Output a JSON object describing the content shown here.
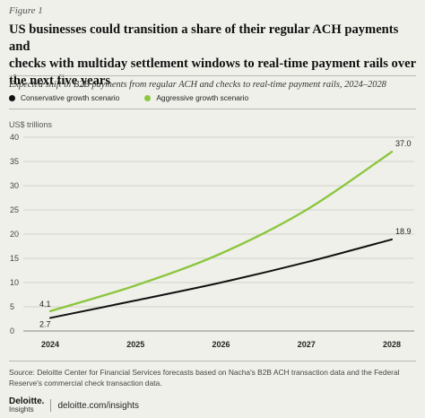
{
  "figure_label": "Figure 1",
  "title_lines": [
    "US businesses could transition a share of their regular ACH payments and",
    "checks with multiday settlement windows to real-time payment rails over",
    "the next five years"
  ],
  "subtitle": "Expected shift in B2B payments from regular ACH and checks to real-time payment rails, 2024–2028",
  "unit_label": "US$ trillions",
  "source_text": "Source: Deloitte Center for Financial Services forecasts based on Nacha's B2B ACH transaction data and the Federal Reserve's commercial check transaction data.",
  "footer": {
    "brand_name": "Deloitte.",
    "brand_sub": "Insights",
    "url": "deloitte.com/insights"
  },
  "colors": {
    "conservative": "#111111",
    "aggressive": "#8cc63f",
    "grid": "#c9c9c3"
  },
  "chart_data": {
    "type": "line",
    "x": [
      "2024",
      "2025",
      "2026",
      "2027",
      "2028"
    ],
    "series": [
      {
        "name": "Conservative growth scenario",
        "values": [
          2.7,
          6.3,
          10.0,
          14.2,
          18.9
        ],
        "color": "#111111"
      },
      {
        "name": "Aggressive growth scenario",
        "values": [
          4.1,
          9.4,
          16.0,
          25.0,
          37.0
        ],
        "color": "#8cc63f"
      }
    ],
    "end_labels": {
      "start": [
        {
          "series": 1,
          "text": "4.1"
        },
        {
          "series": 0,
          "text": "2.7"
        }
      ],
      "end": [
        {
          "series": 1,
          "text": "37.0"
        },
        {
          "series": 0,
          "text": "18.9"
        }
      ]
    },
    "yticks": [
      "0",
      "5",
      "10",
      "15",
      "20",
      "25",
      "30",
      "35",
      "40"
    ],
    "ylim": [
      0,
      40
    ],
    "ylabel": "US$ trillions",
    "xlabel": "",
    "grid": true,
    "legend_position": "top-left"
  }
}
